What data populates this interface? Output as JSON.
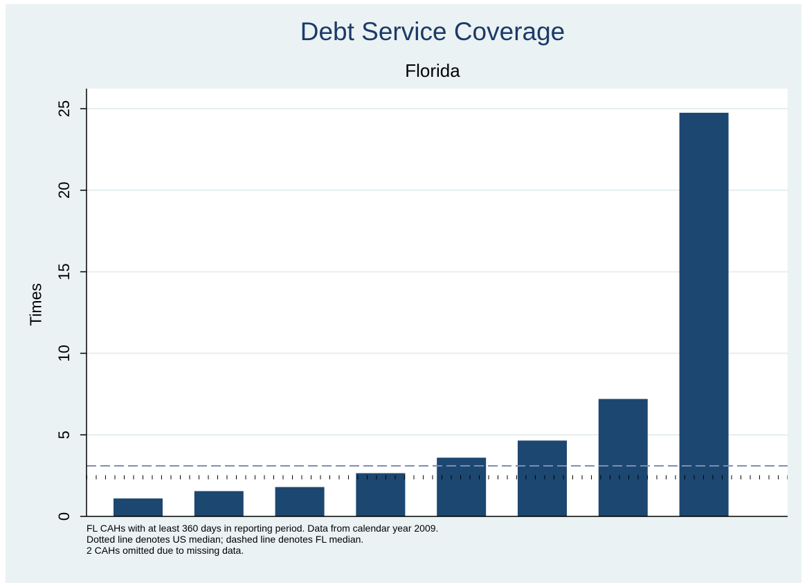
{
  "chart_data": {
    "type": "bar",
    "title": "Debt Service Coverage",
    "subtitle": "Florida",
    "ylabel": "Times",
    "xlabel": "",
    "ylim": [
      0,
      26
    ],
    "yticks": [
      0,
      5,
      10,
      15,
      20,
      25
    ],
    "categories": [
      "",
      "",
      "",
      "",
      "",
      "",
      "",
      ""
    ],
    "values": [
      1.1,
      1.55,
      1.8,
      2.65,
      3.6,
      4.65,
      7.2,
      24.75
    ],
    "bar_color": "#1c4770",
    "grid": true,
    "reference_lines": [
      {
        "style": "dashed",
        "value": 3.1,
        "color": "#7f8db4"
      },
      {
        "style": "dotted",
        "value": 2.4,
        "color": "#000000"
      }
    ],
    "notes": [
      "FL CAHs with at least 360 days in reporting period. Data from calendar year 2009.",
      "Dotted line denotes US median; dashed line denotes FL median.",
      "2 CAHs omitted due to missing data."
    ]
  }
}
